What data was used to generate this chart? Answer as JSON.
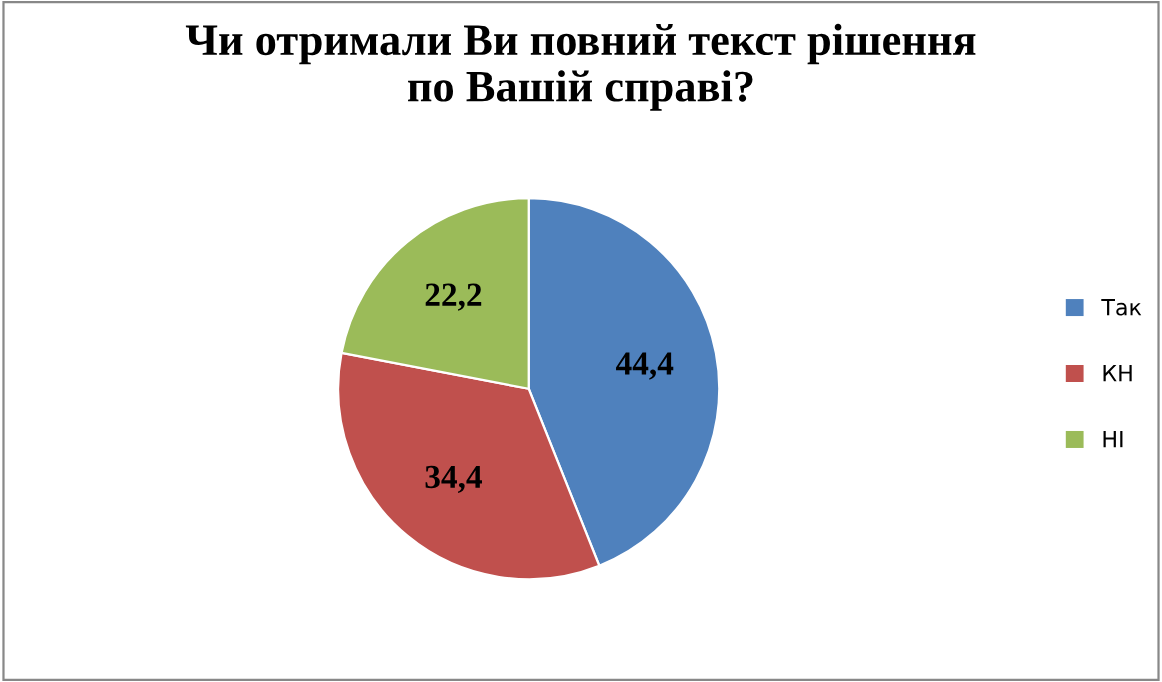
{
  "chart_data": {
    "type": "pie",
    "title": "Чи отримали Ви повний текст рішення\nпо Вашій справі?",
    "categories": [
      "Так",
      "КН",
      "НІ"
    ],
    "values": [
      44.4,
      34.4,
      22.2
    ],
    "colors": [
      "#4f81bd",
      "#c0504d",
      "#9bbb59"
    ],
    "value_labels": [
      "44,4",
      "34,4",
      "22,2"
    ],
    "legend": "right"
  }
}
